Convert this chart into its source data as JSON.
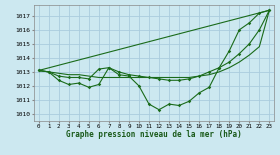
{
  "background_color": "#cce8f0",
  "grid_color": "#aaccdd",
  "line_color": "#1a6b1a",
  "xlabel": "Graphe pression niveau de la mer (hPa)",
  "ylim": [
    1009.5,
    1017.8
  ],
  "xlim": [
    -0.5,
    23.5
  ],
  "yticks": [
    1010,
    1011,
    1012,
    1013,
    1014,
    1015,
    1016,
    1017
  ],
  "xticks": [
    0,
    1,
    2,
    3,
    4,
    5,
    6,
    7,
    8,
    9,
    10,
    11,
    12,
    13,
    14,
    15,
    16,
    17,
    18,
    19,
    20,
    21,
    22,
    23
  ],
  "curve1_x": [
    0,
    1,
    2,
    3,
    4,
    5,
    6,
    7,
    8,
    9,
    10,
    11,
    12,
    13,
    14,
    15,
    16,
    17,
    18,
    19,
    20,
    21,
    22,
    23
  ],
  "curve1_y": [
    1013.1,
    1013.0,
    1012.4,
    1012.1,
    1012.2,
    1011.9,
    1012.1,
    1013.3,
    1012.8,
    1012.7,
    1012.0,
    1010.7,
    1010.3,
    1010.7,
    1010.6,
    1010.9,
    1011.5,
    1011.9,
    1013.3,
    1014.5,
    1016.0,
    1016.5,
    1017.2,
    1017.4
  ],
  "curve2_x": [
    0,
    1,
    2,
    3,
    4,
    5,
    6,
    7,
    8,
    9,
    10,
    11,
    12,
    13,
    14,
    15,
    16,
    17,
    18,
    19,
    20,
    21,
    22,
    23
  ],
  "curve2_y": [
    1013.1,
    1013.0,
    1012.7,
    1012.6,
    1012.6,
    1012.5,
    1013.2,
    1013.3,
    1013.0,
    1012.8,
    1012.7,
    1012.6,
    1012.5,
    1012.4,
    1012.4,
    1012.5,
    1012.7,
    1013.0,
    1013.3,
    1013.7,
    1014.3,
    1015.0,
    1016.0,
    1017.4
  ],
  "curve3_x": [
    0,
    23
  ],
  "curve3_y": [
    1013.1,
    1017.4
  ],
  "curve4_x": [
    0,
    1,
    2,
    3,
    4,
    5,
    6,
    7,
    8,
    9,
    10,
    11,
    12,
    13,
    14,
    15,
    16,
    17,
    18,
    19,
    20,
    21,
    22,
    23
  ],
  "curve4_y": [
    1013.1,
    1013.0,
    1012.9,
    1012.8,
    1012.8,
    1012.7,
    1012.6,
    1012.6,
    1012.6,
    1012.6,
    1012.6,
    1012.6,
    1012.6,
    1012.6,
    1012.6,
    1012.6,
    1012.7,
    1012.8,
    1013.0,
    1013.3,
    1013.7,
    1014.2,
    1014.8,
    1017.4
  ]
}
